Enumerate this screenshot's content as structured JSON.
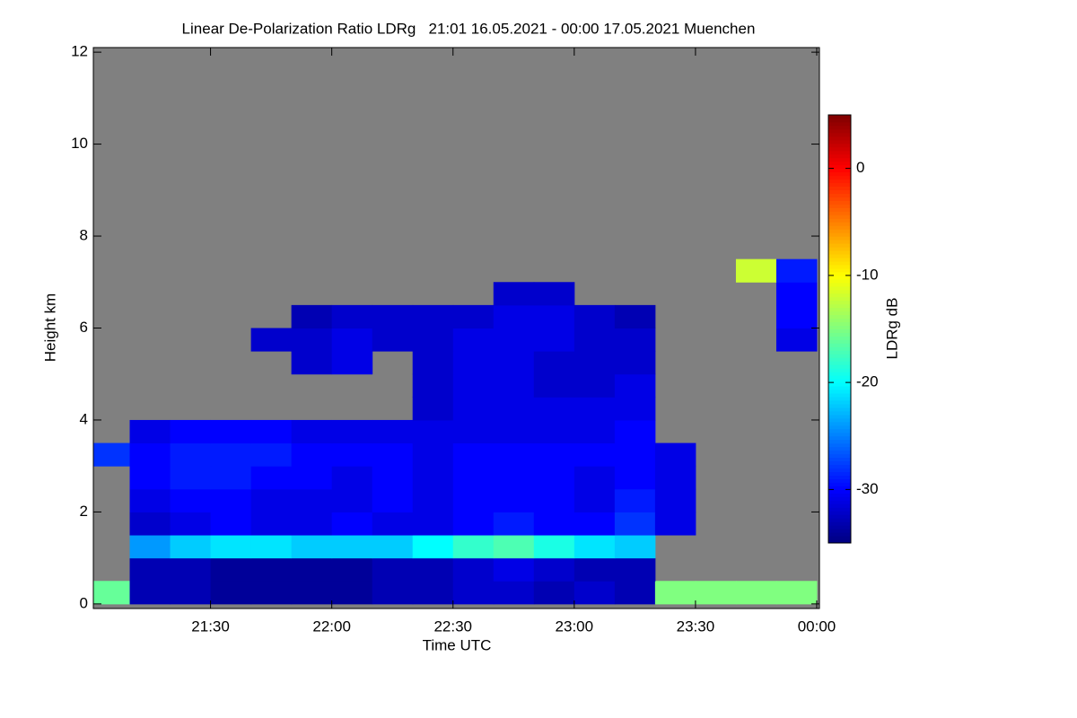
{
  "chart_data": {
    "type": "heatmap",
    "title": "Linear De-Polarization Ratio LDRg   21:01 16.05.2021 - 00:00 17.05.2021 Muenchen",
    "x_label": "Time UTC",
    "y_label": "Height km",
    "colorbar_label": "LDRg dB",
    "colormap": "jet",
    "no_data_color": "#808080",
    "xlim": [
      21.0167,
      24.0
    ],
    "ylim": [
      -0.1,
      12.1
    ],
    "xticks": [
      {
        "value": 21.5,
        "label": "21:30"
      },
      {
        "value": 22.0,
        "label": "22:00"
      },
      {
        "value": 22.5,
        "label": "22:30"
      },
      {
        "value": 23.0,
        "label": "23:00"
      },
      {
        "value": 23.5,
        "label": "23:30"
      },
      {
        "value": 24.0,
        "label": "00:00"
      }
    ],
    "yticks": [
      0,
      2,
      4,
      6,
      8,
      10,
      12
    ],
    "clim": [
      -35,
      5
    ],
    "cticks": [
      -30,
      -20,
      -10,
      0
    ],
    "x_bins": [
      21.0167,
      21.1667,
      21.3333,
      21.5,
      21.6667,
      21.8333,
      22.0,
      22.1667,
      22.3333,
      22.5,
      22.6667,
      22.8333,
      23.0,
      23.1667,
      23.3333,
      23.5,
      23.6667,
      23.8333,
      24.0
    ],
    "y_bins": [
      0,
      0.5,
      1,
      1.5,
      2,
      2.5,
      3,
      3.5,
      4,
      4.5,
      5,
      5.5,
      6,
      6.5,
      7,
      7.5,
      8
    ],
    "z": [
      [
        -16,
        -33,
        -33,
        -34,
        -34,
        -34,
        -34,
        -33,
        -33,
        -32,
        -32,
        -33,
        -32,
        -33,
        -15,
        -15,
        -15,
        -15
      ],
      [
        null,
        -33,
        -33,
        -34,
        -34,
        -34,
        -34,
        -33,
        -33,
        -32,
        -31,
        -32,
        -33,
        -33,
        null,
        null,
        null,
        null
      ],
      [
        null,
        -24,
        -22,
        -21,
        -21,
        -22,
        -22,
        -22,
        -20,
        -18,
        -17,
        -19,
        -21,
        -22,
        null,
        null,
        null,
        null
      ],
      [
        null,
        -32,
        -31,
        -30,
        -31,
        -31,
        -30,
        -31,
        -31,
        -30,
        -29,
        -30,
        -30,
        -28,
        -31,
        null,
        null,
        null
      ],
      [
        null,
        -31,
        -30,
        -30,
        -31,
        -31,
        -31,
        -30,
        -31,
        -30,
        -30,
        -30,
        -31,
        -29,
        -31,
        null,
        null,
        null
      ],
      [
        null,
        -30,
        -29,
        -29,
        -30,
        -30,
        -31,
        -30,
        -31,
        -30,
        -30,
        -30,
        -31,
        -30,
        -31,
        null,
        null,
        null
      ],
      [
        -28,
        -30,
        -29,
        -29,
        -29,
        -30,
        -30,
        -30,
        -31,
        -30,
        -30,
        -30,
        -30,
        -30,
        -31,
        null,
        null,
        null
      ],
      [
        null,
        -31,
        -30,
        -30,
        -30,
        -31,
        -31,
        -31,
        -31,
        -31,
        -31,
        -31,
        -31,
        -30,
        null,
        null,
        null,
        null
      ],
      [
        null,
        null,
        null,
        null,
        null,
        null,
        null,
        null,
        -32,
        -31,
        -31,
        -31,
        -31,
        -31,
        null,
        null,
        null,
        null
      ],
      [
        null,
        null,
        null,
        null,
        null,
        null,
        null,
        null,
        -32,
        -31,
        -31,
        -32,
        -32,
        -31,
        null,
        null,
        null,
        null
      ],
      [
        null,
        null,
        null,
        null,
        null,
        -32,
        -31,
        null,
        -32,
        -31,
        -31,
        -32,
        -32,
        -32,
        null,
        null,
        null,
        null
      ],
      [
        null,
        null,
        null,
        null,
        -32,
        -32,
        -31,
        -32,
        -32,
        -31,
        -31,
        -31,
        -32,
        -32,
        null,
        null,
        null,
        -31
      ],
      [
        null,
        null,
        null,
        null,
        null,
        -33,
        -32,
        -32,
        -32,
        -32,
        -31,
        -31,
        -32,
        -33,
        null,
        null,
        null,
        -30
      ],
      [
        null,
        null,
        null,
        null,
        null,
        null,
        null,
        null,
        null,
        null,
        -32,
        -32,
        null,
        null,
        null,
        null,
        null,
        -30
      ],
      [
        null,
        null,
        null,
        null,
        null,
        null,
        null,
        null,
        null,
        null,
        null,
        null,
        null,
        null,
        null,
        null,
        -12,
        -29
      ],
      [
        null,
        null,
        null,
        null,
        null,
        null,
        null,
        null,
        null,
        null,
        null,
        null,
        null,
        null,
        null,
        null,
        null,
        null
      ]
    ]
  }
}
